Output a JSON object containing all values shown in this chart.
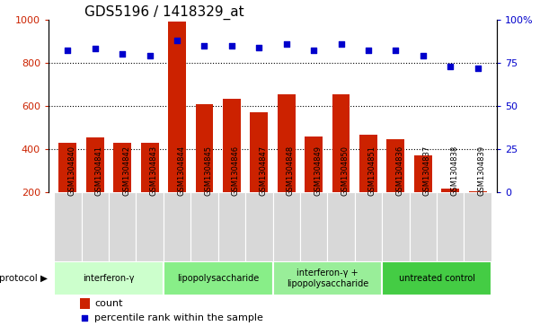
{
  "title": "GDS5196 / 1418329_at",
  "samples": [
    "GSM1304840",
    "GSM1304841",
    "GSM1304842",
    "GSM1304843",
    "GSM1304844",
    "GSM1304845",
    "GSM1304846",
    "GSM1304847",
    "GSM1304848",
    "GSM1304849",
    "GSM1304850",
    "GSM1304851",
    "GSM1304836",
    "GSM1304837",
    "GSM1304838",
    "GSM1304839"
  ],
  "counts": [
    430,
    455,
    430,
    430,
    990,
    610,
    635,
    570,
    655,
    460,
    655,
    465,
    445,
    370,
    215,
    205
  ],
  "percentiles": [
    82,
    83,
    80,
    79,
    88,
    85,
    85,
    84,
    86,
    82,
    86,
    82,
    82,
    79,
    73,
    72
  ],
  "groups": [
    {
      "label": "interferon-γ",
      "start": 0,
      "end": 4,
      "color": "#ccffcc"
    },
    {
      "label": "lipopolysaccharide",
      "start": 4,
      "end": 8,
      "color": "#88ee88"
    },
    {
      "label": "interferon-γ +\nlipopolysaccharide",
      "start": 8,
      "end": 12,
      "color": "#99ee99"
    },
    {
      "label": "untreated control",
      "start": 12,
      "end": 16,
      "color": "#44cc44"
    }
  ],
  "bar_color": "#cc2200",
  "dot_color": "#0000cc",
  "left_ylim": [
    200,
    1000
  ],
  "right_ylim": [
    0,
    100
  ],
  "left_yticks": [
    200,
    400,
    600,
    800,
    1000
  ],
  "right_yticks": [
    0,
    25,
    50,
    75,
    100
  ],
  "right_yticklabels": [
    "0",
    "25",
    "50",
    "75",
    "100%"
  ],
  "grid_values": [
    400,
    600,
    800
  ],
  "title_fontsize": 11,
  "label_fontsize": 8,
  "tick_fontsize": 8,
  "protocol_label": "protocol"
}
